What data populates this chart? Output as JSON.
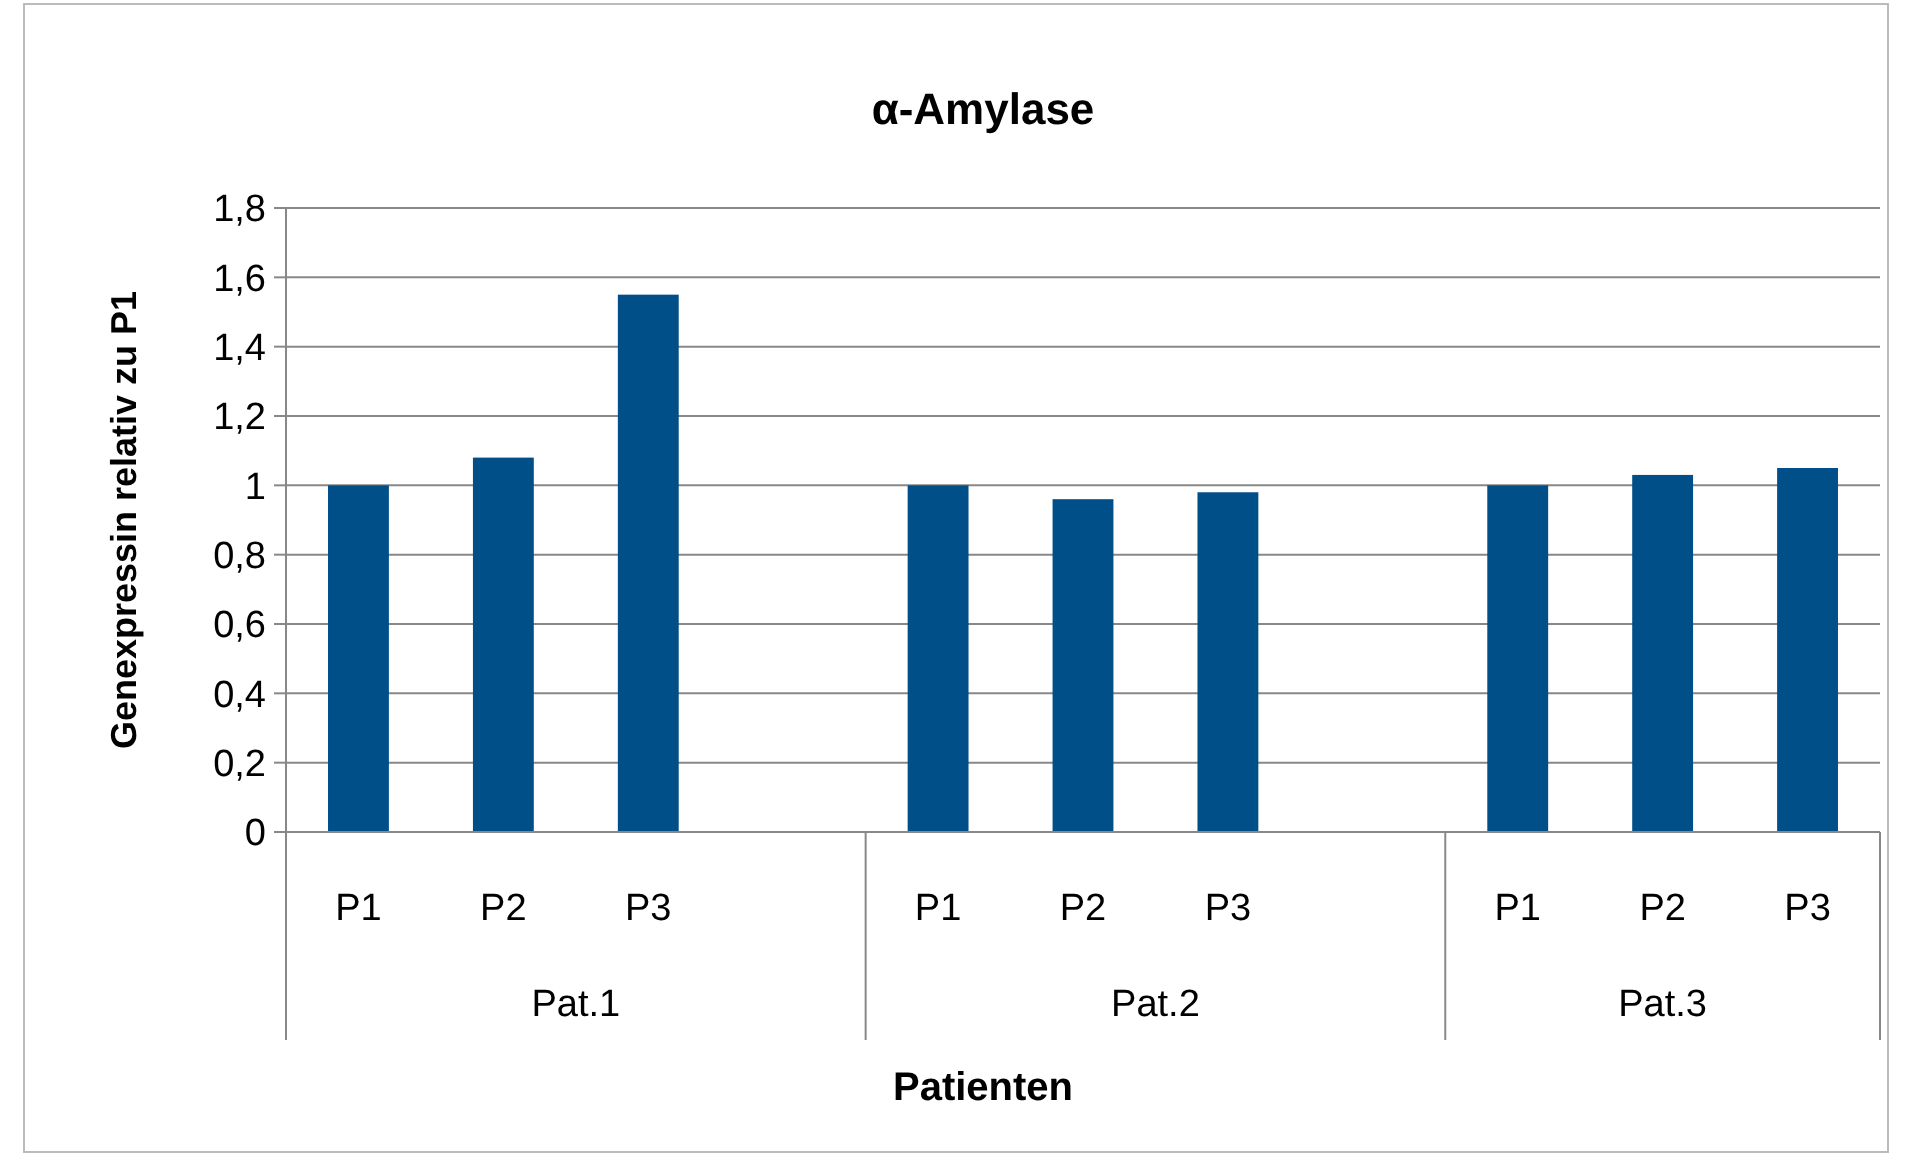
{
  "chart_data": {
    "type": "bar",
    "title": "α-Amylase",
    "xlabel": "Patienten",
    "ylabel": "Genexpressin relativ zu P1",
    "categories": [
      "P1",
      "P2",
      "P3",
      null,
      "P1",
      "P2",
      "P3",
      null,
      "P1",
      "P2",
      "P3"
    ],
    "values": [
      1,
      1.08,
      1.55,
      null,
      1,
      0.96,
      0.98,
      null,
      1,
      1.03,
      1.05
    ],
    "color": "#004f88",
    "ylim": [
      0,
      1.8
    ],
    "yticks": [
      0,
      {
        "value": 0.2,
        "label": "0,2"
      },
      {
        "value": 0.4,
        "label": "0,4"
      },
      {
        "value": 0.6,
        "label": "0,6"
      },
      {
        "value": 0.8,
        "label": "0,8"
      },
      1,
      {
        "value": 1.2,
        "label": "1,2"
      },
      {
        "value": 1.4,
        "label": "1,4"
      },
      {
        "value": 1.6,
        "label": "1,6"
      },
      {
        "value": 1.8,
        "label": "1,8"
      }
    ],
    "grid": "y",
    "annotations": [
      "Pat.1",
      "Pat.2",
      "Pat.3"
    ]
  }
}
